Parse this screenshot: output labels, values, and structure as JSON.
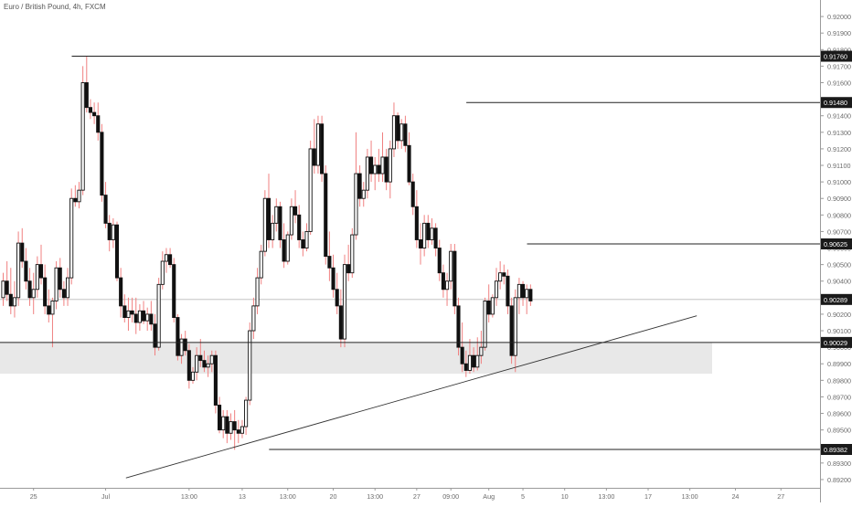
{
  "chart_data": {
    "type": "candlestick",
    "title": "Euro / British Pound, 4h, FXCM",
    "ylim": [
      0.8915,
      0.921
    ],
    "y_ticks": [
      "0.92000",
      "0.91900",
      "0.91800",
      "0.91700",
      "0.91600",
      "0.91500",
      "0.91400",
      "0.91300",
      "0.91200",
      "0.91100",
      "0.91000",
      "0.90900",
      "0.90800",
      "0.90700",
      "0.90600",
      "0.90500",
      "0.90400",
      "0.90300",
      "0.90200",
      "0.90100",
      "0.90000",
      "0.89900",
      "0.89800",
      "0.89700",
      "0.89600",
      "0.89500",
      "0.89400",
      "0.89300",
      "0.89200"
    ],
    "x_ticks": [
      "25",
      "Jul",
      "13:00",
      "13",
      "13:00",
      "20",
      "13:00",
      "27",
      "09:00",
      "Aug",
      "5",
      "10",
      "13:00",
      "17",
      "13:00",
      "24",
      "27"
    ],
    "price_labels": [
      "0.91760",
      "0.91480",
      "0.90625",
      "0.90289",
      "0.90029",
      "0.89382"
    ],
    "levels": [
      {
        "label": "0.91760",
        "value": 0.9176,
        "from_bar": 0
      },
      {
        "label": "0.91480",
        "value": 0.9148,
        "from_bar": 104
      },
      {
        "label": "0.90625",
        "value": 0.90625,
        "from_bar": 120
      },
      {
        "label": "0.90029",
        "value": 0.90029,
        "from_bar": -20
      },
      {
        "label": "0.89382",
        "value": 0.89382,
        "from_bar": 52
      }
    ],
    "current_price": 0.90289,
    "support_zone": [
      0.8984,
      0.90029
    ],
    "trendline": {
      "start": {
        "bar": 22,
        "price": 0.8921
      },
      "end": {
        "bar": 178,
        "price": 0.9019
      }
    },
    "candles": [
      [
        0.903,
        0.9045,
        0.9025,
        0.904
      ],
      [
        0.904,
        0.9052,
        0.9028,
        0.9032
      ],
      [
        0.9032,
        0.9048,
        0.902,
        0.9025
      ],
      [
        0.9025,
        0.904,
        0.9018,
        0.903
      ],
      [
        0.903,
        0.907,
        0.9025,
        0.9063
      ],
      [
        0.9063,
        0.9072,
        0.9048,
        0.9052
      ],
      [
        0.9052,
        0.906,
        0.9035,
        0.904
      ],
      [
        0.904,
        0.9048,
        0.9025,
        0.903
      ],
      [
        0.903,
        0.9045,
        0.902,
        0.9035
      ],
      [
        0.9035,
        0.9055,
        0.903,
        0.905
      ],
      [
        0.905,
        0.9062,
        0.9038,
        0.9042
      ],
      [
        0.9042,
        0.905,
        0.902,
        0.9025
      ],
      [
        0.9025,
        0.9035,
        0.9015,
        0.902
      ],
      [
        0.902,
        0.903,
        0.9,
        0.9028
      ],
      [
        0.9028,
        0.9052,
        0.9023,
        0.9048
      ],
      [
        0.9048,
        0.9054,
        0.903,
        0.9035
      ],
      [
        0.9035,
        0.904,
        0.9025,
        0.903
      ],
      [
        0.903,
        0.9048,
        0.9025,
        0.9042
      ],
      [
        0.9042,
        0.9096,
        0.9038,
        0.909
      ],
      [
        0.909,
        0.9098,
        0.9085,
        0.9088
      ],
      [
        0.9088,
        0.91,
        0.9084,
        0.9095
      ],
      [
        0.9095,
        0.917,
        0.9092,
        0.916
      ],
      [
        0.916,
        0.9176,
        0.9142,
        0.9145
      ],
      [
        0.9145,
        0.915,
        0.9138,
        0.9142
      ],
      [
        0.9142,
        0.9148,
        0.9135,
        0.914
      ],
      [
        0.914,
        0.9148,
        0.9125,
        0.913
      ],
      [
        0.913,
        0.9135,
        0.9088,
        0.9092
      ],
      [
        0.9092,
        0.91,
        0.9072,
        0.9075
      ],
      [
        0.9075,
        0.908,
        0.9058,
        0.9065
      ],
      [
        0.9065,
        0.9078,
        0.906,
        0.9074
      ],
      [
        0.9074,
        0.9076,
        0.904,
        0.9042
      ],
      [
        0.9042,
        0.9048,
        0.9018,
        0.9025
      ],
      [
        0.9025,
        0.9032,
        0.9015,
        0.9018
      ],
      [
        0.9018,
        0.903,
        0.901,
        0.9022
      ],
      [
        0.9022,
        0.903,
        0.9015,
        0.902
      ],
      [
        0.902,
        0.903,
        0.9008,
        0.9015
      ],
      [
        0.9015,
        0.9026,
        0.901,
        0.9022
      ],
      [
        0.9022,
        0.9028,
        0.9014,
        0.9016
      ],
      [
        0.9016,
        0.9024,
        0.901,
        0.902
      ],
      [
        0.902,
        0.9028,
        0.901,
        0.9014
      ],
      [
        0.9014,
        0.902,
        0.8995,
        0.9
      ],
      [
        0.9,
        0.9042,
        0.8998,
        0.9038
      ],
      [
        0.9038,
        0.9058,
        0.9035,
        0.9052
      ],
      [
        0.9052,
        0.906,
        0.9045,
        0.9056
      ],
      [
        0.9056,
        0.906,
        0.9048,
        0.905
      ],
      [
        0.905,
        0.9054,
        0.9015,
        0.9018
      ],
      [
        0.9018,
        0.902,
        0.8992,
        0.8995
      ],
      [
        0.8995,
        0.9008,
        0.899,
        0.9005
      ],
      [
        0.9005,
        0.901,
        0.8995,
        0.8998
      ],
      [
        0.8998,
        0.9002,
        0.8975,
        0.898
      ],
      [
        0.898,
        0.8988,
        0.8978,
        0.8985
      ],
      [
        0.8985,
        0.9,
        0.898,
        0.8995
      ],
      [
        0.8995,
        0.9005,
        0.8988,
        0.8992
      ],
      [
        0.8992,
        0.8998,
        0.8985,
        0.8988
      ],
      [
        0.8988,
        0.8995,
        0.8982,
        0.899
      ],
      [
        0.899,
        0.8998,
        0.8985,
        0.8995
      ],
      [
        0.8995,
        0.8998,
        0.896,
        0.8965
      ],
      [
        0.8965,
        0.897,
        0.8948,
        0.895
      ],
      [
        0.895,
        0.8962,
        0.8945,
        0.8958
      ],
      [
        0.8958,
        0.8962,
        0.8942,
        0.8948
      ],
      [
        0.8948,
        0.896,
        0.8944,
        0.8955
      ],
      [
        0.8955,
        0.8962,
        0.8938,
        0.895
      ],
      [
        0.895,
        0.8956,
        0.8942,
        0.8948
      ],
      [
        0.8948,
        0.8956,
        0.8945,
        0.8952
      ],
      [
        0.8952,
        0.897,
        0.8947,
        0.8968
      ],
      [
        0.8968,
        0.9015,
        0.8965,
        0.901
      ],
      [
        0.901,
        0.903,
        0.9005,
        0.9025
      ],
      [
        0.9025,
        0.9048,
        0.902,
        0.9042
      ],
      [
        0.9042,
        0.9062,
        0.9038,
        0.9058
      ],
      [
        0.9058,
        0.9095,
        0.9055,
        0.909
      ],
      [
        0.909,
        0.9105,
        0.906,
        0.9065
      ],
      [
        0.9065,
        0.908,
        0.906,
        0.9075
      ],
      [
        0.9075,
        0.909,
        0.907,
        0.9085
      ],
      [
        0.9085,
        0.9088,
        0.906,
        0.9065
      ],
      [
        0.9065,
        0.9075,
        0.9048,
        0.9052
      ],
      [
        0.9052,
        0.907,
        0.905,
        0.9068
      ],
      [
        0.9068,
        0.909,
        0.9065,
        0.9085
      ],
      [
        0.9085,
        0.9095,
        0.9075,
        0.908
      ],
      [
        0.908,
        0.9086,
        0.906,
        0.9065
      ],
      [
        0.9065,
        0.907,
        0.9055,
        0.906
      ],
      [
        0.906,
        0.9075,
        0.9058,
        0.907
      ],
      [
        0.907,
        0.9125,
        0.9068,
        0.912
      ],
      [
        0.912,
        0.9138,
        0.9105,
        0.911
      ],
      [
        0.911,
        0.914,
        0.9105,
        0.9135
      ],
      [
        0.9135,
        0.914,
        0.91,
        0.9105
      ],
      [
        0.9105,
        0.911,
        0.905,
        0.9055
      ],
      [
        0.9055,
        0.907,
        0.904,
        0.9048
      ],
      [
        0.9048,
        0.9056,
        0.903,
        0.9035
      ],
      [
        0.9035,
        0.9045,
        0.902,
        0.9025
      ],
      [
        0.9025,
        0.9035,
        0.9,
        0.9005
      ],
      [
        0.9005,
        0.9056,
        0.9,
        0.905
      ],
      [
        0.905,
        0.9062,
        0.904,
        0.9045
      ],
      [
        0.9045,
        0.9072,
        0.9042,
        0.9068
      ],
      [
        0.9068,
        0.913,
        0.9065,
        0.9105
      ],
      [
        0.9105,
        0.911,
        0.9085,
        0.909
      ],
      [
        0.909,
        0.91,
        0.9085,
        0.9095
      ],
      [
        0.9095,
        0.912,
        0.909,
        0.9115
      ],
      [
        0.9115,
        0.9125,
        0.91,
        0.9105
      ],
      [
        0.9105,
        0.9115,
        0.9095,
        0.911
      ],
      [
        0.911,
        0.912,
        0.91,
        0.9105
      ],
      [
        0.9105,
        0.913,
        0.91,
        0.9115
      ],
      [
        0.9115,
        0.912,
        0.9095,
        0.91
      ],
      [
        0.91,
        0.9125,
        0.909,
        0.912
      ],
      [
        0.912,
        0.9148,
        0.9115,
        0.914
      ],
      [
        0.914,
        0.9142,
        0.912,
        0.9125
      ],
      [
        0.9125,
        0.9138,
        0.912,
        0.9135
      ],
      [
        0.9135,
        0.914,
        0.9118,
        0.9122
      ],
      [
        0.9122,
        0.913,
        0.9098,
        0.91
      ],
      [
        0.91,
        0.9105,
        0.908,
        0.9085
      ],
      [
        0.9085,
        0.9095,
        0.906,
        0.9065
      ],
      [
        0.9065,
        0.9075,
        0.905,
        0.906
      ],
      [
        0.906,
        0.908,
        0.9055,
        0.9075
      ],
      [
        0.9075,
        0.908,
        0.906,
        0.9065
      ],
      [
        0.9065,
        0.9078,
        0.9062,
        0.9072
      ],
      [
        0.9072,
        0.9075,
        0.9055,
        0.906
      ],
      [
        0.906,
        0.9065,
        0.904,
        0.9045
      ],
      [
        0.9045,
        0.905,
        0.903,
        0.9035
      ],
      [
        0.9035,
        0.9045,
        0.9025,
        0.904
      ],
      [
        0.904,
        0.90625,
        0.9035,
        0.9058
      ],
      [
        0.9058,
        0.90625,
        0.902,
        0.9025
      ],
      [
        0.9025,
        0.903,
        0.8995,
        0.9
      ],
      [
        0.9,
        0.9015,
        0.8985,
        0.899
      ],
      [
        0.899,
        0.8998,
        0.8982,
        0.8986
      ],
      [
        0.8986,
        0.9005,
        0.8984,
        0.8995
      ],
      [
        0.8995,
        0.9,
        0.8985,
        0.8988
      ],
      [
        0.8988,
        0.9006,
        0.8986,
        0.8995
      ],
      [
        0.8995,
        0.901,
        0.899,
        0.9
      ],
      [
        0.9,
        0.903,
        0.8998,
        0.9028
      ],
      [
        0.9028,
        0.9038,
        0.9015,
        0.902
      ],
      [
        0.902,
        0.9032,
        0.9018,
        0.903
      ],
      [
        0.903,
        0.9048,
        0.9025,
        0.904
      ],
      [
        0.904,
        0.9052,
        0.9035,
        0.9045
      ],
      [
        0.9045,
        0.905,
        0.9038,
        0.9043
      ],
      [
        0.9043,
        0.9047,
        0.902,
        0.9025
      ],
      [
        0.9025,
        0.903,
        0.899,
        0.8995
      ],
      [
        0.8995,
        0.9035,
        0.8985,
        0.903
      ],
      [
        0.903,
        0.9042,
        0.902,
        0.9038
      ],
      [
        0.9038,
        0.904,
        0.9025,
        0.903
      ],
      [
        0.903,
        0.9038,
        0.902,
        0.9035
      ],
      [
        0.9035,
        0.9038,
        0.9025,
        0.9028
      ]
    ]
  }
}
